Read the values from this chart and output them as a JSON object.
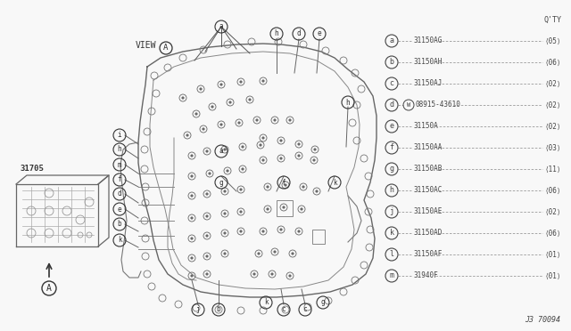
{
  "bg_color": "#f8f8f8",
  "text_color": "#444444",
  "line_color": "#888888",
  "dark_color": "#333333",
  "part_label": "31705",
  "view_label": "VIEW",
  "diagram_ref": "J3 70094",
  "qty_header": "Q'TY",
  "legend": [
    {
      "letter": "a",
      "part": "31150AG",
      "qty": "05"
    },
    {
      "letter": "b",
      "part": "31150AH",
      "qty": "06"
    },
    {
      "letter": "c",
      "part": "31150AJ",
      "qty": "02"
    },
    {
      "letter": "d",
      "part": "08915-43610",
      "qty": "02",
      "has_w": true
    },
    {
      "letter": "e",
      "part": "31150A",
      "qty": "02"
    },
    {
      "letter": "f",
      "part": "31150AA",
      "qty": "03"
    },
    {
      "letter": "g",
      "part": "31150AB",
      "qty": "11"
    },
    {
      "letter": "h",
      "part": "31150AC",
      "qty": "06"
    },
    {
      "letter": "j",
      "part": "31150AE",
      "qty": "02"
    },
    {
      "letter": "k",
      "part": "31150AD",
      "qty": "06"
    },
    {
      "letter": "l",
      "part": "31150AF",
      "qty": "01"
    },
    {
      "letter": "m",
      "part": "31940F",
      "qty": "01"
    }
  ]
}
